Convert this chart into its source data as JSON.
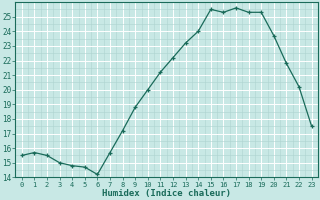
{
  "x": [
    0,
    1,
    2,
    3,
    4,
    5,
    6,
    7,
    8,
    9,
    10,
    11,
    12,
    13,
    14,
    15,
    16,
    17,
    18,
    19,
    20,
    21,
    22,
    23
  ],
  "y": [
    15.5,
    15.7,
    15.5,
    15.0,
    14.8,
    14.7,
    14.2,
    15.7,
    17.2,
    18.8,
    20.0,
    21.2,
    22.2,
    23.2,
    24.0,
    25.5,
    25.3,
    25.6,
    25.3,
    25.3,
    23.7,
    21.8,
    20.2,
    17.5
  ],
  "xlabel": "Humidex (Indice chaleur)",
  "ylim": [
    14,
    26
  ],
  "yticks": [
    14,
    15,
    16,
    17,
    18,
    19,
    20,
    21,
    22,
    23,
    24,
    25
  ],
  "xticks": [
    0,
    1,
    2,
    3,
    4,
    5,
    6,
    7,
    8,
    9,
    10,
    11,
    12,
    13,
    14,
    15,
    16,
    17,
    18,
    19,
    20,
    21,
    22,
    23
  ],
  "line_color": "#1a6b5a",
  "marker_color": "#1a6b5a",
  "bg_color": "#c8e8e5",
  "grid_major_color": "#ffffff",
  "grid_minor_color": "#aed4d0"
}
